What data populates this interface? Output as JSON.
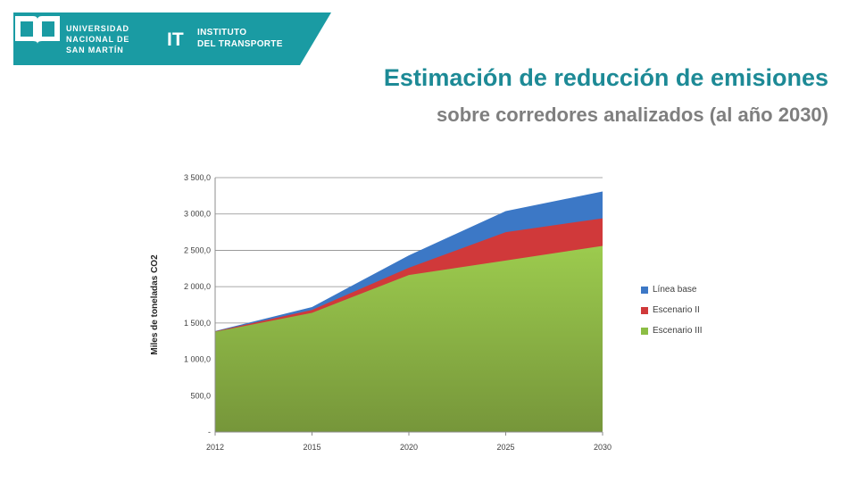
{
  "header": {
    "university_lines": [
      "UNIVERSIDAD",
      "NACIONAL DE",
      "SAN MARTÍN"
    ],
    "it_mark": "IT",
    "institute_lines": [
      "INSTITUTO",
      "DEL TRANSPORTE"
    ]
  },
  "slide": {
    "title": "Estimación de reducción de emisiones",
    "subtitle": "sobre corredores analizados (al año 2030)"
  },
  "colors": {
    "brand": "#1a9ba3",
    "title": "#1d8a96",
    "subtitle": "#7f7f7f"
  },
  "chart_data": {
    "type": "area",
    "stacked": false,
    "x": [
      "2012",
      "2015",
      "2020",
      "2025",
      "2030"
    ],
    "series": [
      {
        "name": "Línea base",
        "color": "#3c78c6",
        "values": [
          1390,
          1720,
          2430,
          3040,
          3310
        ]
      },
      {
        "name": "Escenario II",
        "color": "#d0393a",
        "values": [
          1385,
          1680,
          2260,
          2750,
          2940
        ]
      },
      {
        "name": "Escenario III",
        "color": "#8cbd44",
        "values": [
          1380,
          1640,
          2160,
          2360,
          2560
        ]
      }
    ],
    "ylabel": "Miles de toneladas CO2",
    "ylim": [
      0,
      3500
    ],
    "yticks": [
      0,
      500,
      1000,
      1500,
      2000,
      2500,
      3000,
      3500
    ],
    "ytick_labels": [
      "-",
      "500,0",
      "1 000,0",
      "1 500,0",
      "2 000,0",
      "2 500,0",
      "3 000,0",
      "3 500,0"
    ],
    "grid": true,
    "legend_position": "right"
  }
}
